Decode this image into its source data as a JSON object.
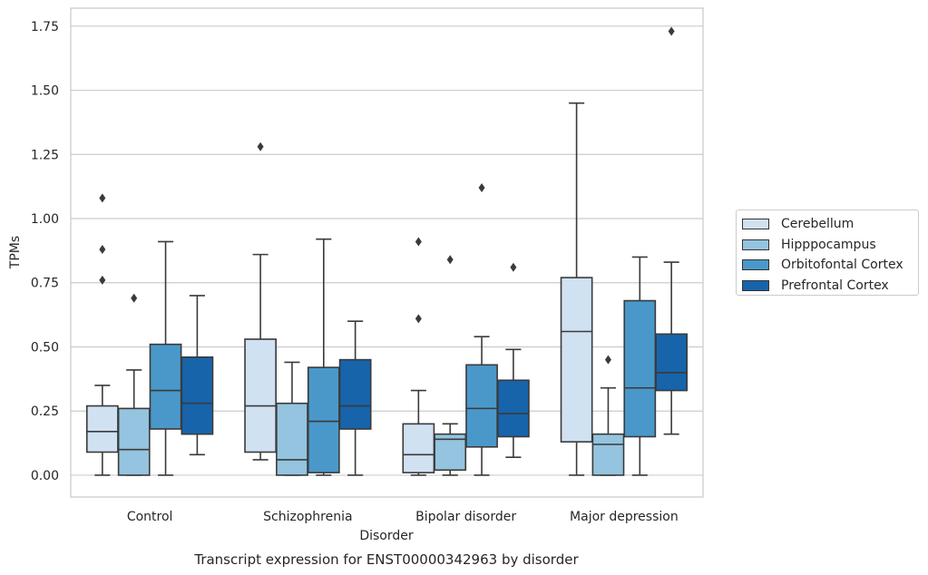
{
  "chart_data": {
    "type": "boxplot",
    "title": "Transcript expression for ENST00000342963 by disorder",
    "xlabel": "Disorder",
    "ylabel": "TPMs",
    "ylim": [
      -0.085,
      1.82
    ],
    "yticks": [
      "0.00",
      "0.25",
      "0.50",
      "0.75",
      "1.00",
      "1.25",
      "1.50",
      "1.75"
    ],
    "categories": [
      "Control",
      "Schizophrenia",
      "Bipolar disorder",
      "Major depression"
    ],
    "grid": "horizontal",
    "legend_position": "right",
    "series": [
      {
        "name": "Cerebellum",
        "color": "#d0e1f2",
        "boxes": [
          {
            "min": 0.0,
            "q1": 0.09,
            "median": 0.17,
            "q3": 0.27,
            "max": 0.35,
            "outliers": [
              0.76,
              0.88,
              1.08
            ]
          },
          {
            "min": 0.06,
            "q1": 0.09,
            "median": 0.27,
            "q3": 0.53,
            "max": 0.86,
            "outliers": [
              1.28
            ]
          },
          {
            "min": 0.0,
            "q1": 0.01,
            "median": 0.08,
            "q3": 0.2,
            "max": 0.33,
            "outliers": [
              0.61,
              0.91
            ]
          },
          {
            "min": 0.0,
            "q1": 0.13,
            "median": 0.56,
            "q3": 0.77,
            "max": 1.45,
            "outliers": []
          }
        ]
      },
      {
        "name": "Hipppocampus",
        "color": "#94c4df",
        "boxes": [
          {
            "min": 0.0,
            "q1": 0.0,
            "median": 0.1,
            "q3": 0.26,
            "max": 0.41,
            "outliers": [
              0.69
            ]
          },
          {
            "min": 0.0,
            "q1": 0.0,
            "median": 0.06,
            "q3": 0.28,
            "max": 0.44,
            "outliers": []
          },
          {
            "min": 0.0,
            "q1": 0.02,
            "median": 0.14,
            "q3": 0.16,
            "max": 0.2,
            "outliers": [
              0.84
            ]
          },
          {
            "min": 0.0,
            "q1": 0.0,
            "median": 0.12,
            "q3": 0.16,
            "max": 0.34,
            "outliers": [
              0.45
            ]
          }
        ]
      },
      {
        "name": "Orbitofontal Cortex",
        "color": "#4a98c9",
        "boxes": [
          {
            "min": 0.0,
            "q1": 0.18,
            "median": 0.33,
            "q3": 0.51,
            "max": 0.91,
            "outliers": []
          },
          {
            "min": 0.0,
            "q1": 0.01,
            "median": 0.21,
            "q3": 0.42,
            "max": 0.92,
            "outliers": []
          },
          {
            "min": 0.0,
            "q1": 0.11,
            "median": 0.26,
            "q3": 0.43,
            "max": 0.54,
            "outliers": [
              1.12
            ]
          },
          {
            "min": 0.0,
            "q1": 0.15,
            "median": 0.34,
            "q3": 0.68,
            "max": 0.85,
            "outliers": []
          }
        ]
      },
      {
        "name": "Prefrontal Cortex",
        "color": "#1764ab",
        "boxes": [
          {
            "min": 0.08,
            "q1": 0.16,
            "median": 0.28,
            "q3": 0.46,
            "max": 0.7,
            "outliers": []
          },
          {
            "min": 0.0,
            "q1": 0.18,
            "median": 0.27,
            "q3": 0.45,
            "max": 0.6,
            "outliers": []
          },
          {
            "min": 0.07,
            "q1": 0.15,
            "median": 0.24,
            "q3": 0.37,
            "max": 0.49,
            "outliers": [
              0.81
            ]
          },
          {
            "min": 0.16,
            "q1": 0.33,
            "median": 0.4,
            "q3": 0.55,
            "max": 0.83,
            "outliers": [
              1.73
            ]
          }
        ]
      }
    ]
  }
}
